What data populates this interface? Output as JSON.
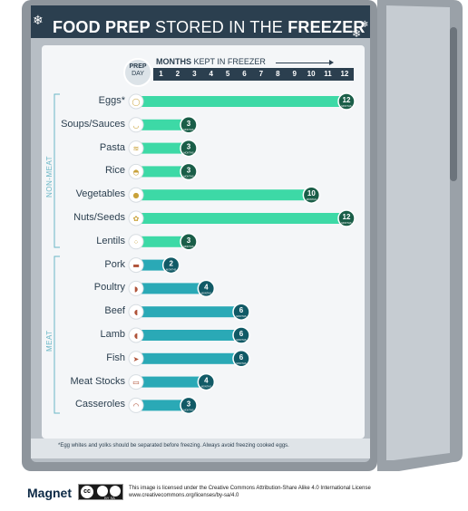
{
  "title": {
    "bold1": "FOOD PREP",
    "light": "STORED IN THE",
    "bold2": "FREEZER"
  },
  "header": {
    "prep_line1": "PREP",
    "prep_line2": "DAY",
    "months_bold": "MONTHS",
    "months_rest": "KEPT IN FREEZER",
    "month_numbers": [
      "1",
      "2",
      "3",
      "4",
      "5",
      "6",
      "7",
      "8",
      "9",
      "10",
      "11",
      "12"
    ]
  },
  "groups": {
    "non_meat": "NON-MEAT",
    "meat": "MEAT"
  },
  "badge_unit": "MONTHS",
  "colors": {
    "non_meat": "#3dd9a6",
    "meat": "#2aa9b6",
    "badge_non_meat": "#1a5e48",
    "badge_meat": "#115a66",
    "fridge_outer": "#8e959c",
    "fridge_inner": "#cfd6dc",
    "panel": "#f4f6f8",
    "navy": "#2b3f4f"
  },
  "chart_data": {
    "type": "bar",
    "orientation": "horizontal",
    "title": "FOOD PREP STORED IN THE FREEZER",
    "xlabel": "MONTHS KEPT IN FREEZER",
    "xlim": [
      0,
      12
    ],
    "categories": [
      "Eggs*",
      "Soups/Sauces",
      "Pasta",
      "Rice",
      "Vegetables",
      "Nuts/Seeds",
      "Lentils",
      "Pork",
      "Poultry",
      "Beef",
      "Lamb",
      "Fish",
      "Meat Stocks",
      "Casseroles"
    ],
    "values": [
      12,
      3,
      3,
      3,
      10,
      12,
      3,
      2,
      4,
      6,
      6,
      6,
      4,
      3
    ],
    "groups": [
      "NON-MEAT",
      "NON-MEAT",
      "NON-MEAT",
      "NON-MEAT",
      "NON-MEAT",
      "NON-MEAT",
      "NON-MEAT",
      "MEAT",
      "MEAT",
      "MEAT",
      "MEAT",
      "MEAT",
      "MEAT",
      "MEAT"
    ],
    "icons": [
      "egg-icon",
      "soup-icon",
      "pasta-icon",
      "rice-icon",
      "pepper-icon",
      "nuts-icon",
      "lentils-icon",
      "pork-icon",
      "poultry-icon",
      "beef-icon",
      "lamb-icon",
      "fish-icon",
      "stock-pot-icon",
      "casserole-icon"
    ]
  },
  "footnote": "*Egg whites and yolks should be separated before freezing. Always avoid freezing cooked eggs.",
  "brand": "Magnet",
  "cc_badge": {
    "cc": "cc",
    "sub": "BY  SA"
  },
  "license_line1": "This image is licensed under the Creative Commons Attribution-Share Alike 4.0 International License",
  "license_line2": "www.creativecommons.org/licenses/by-sa/4.0"
}
